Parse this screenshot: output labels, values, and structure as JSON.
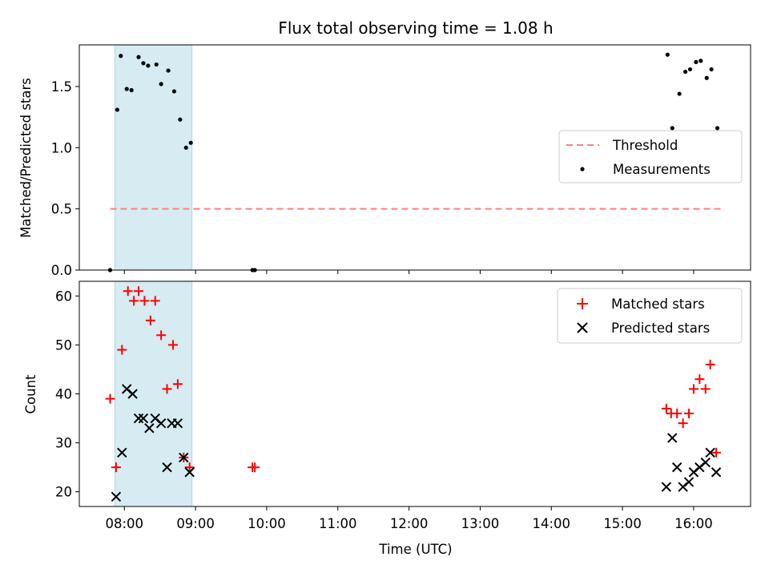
{
  "chart_data": {
    "title": "Flux total observing time = 1.08 h",
    "highlight_window": {
      "x_start": "07:52",
      "x_end": "08:57",
      "color": "#add8e6"
    },
    "x_axis": {
      "label": "Time (UTC)",
      "range": [
        "07:22",
        "16:48"
      ],
      "ticks": [
        "08:00",
        "09:00",
        "10:00",
        "11:00",
        "12:00",
        "13:00",
        "14:00",
        "15:00",
        "16:00"
      ]
    },
    "top": {
      "type": "scatter",
      "ylabel": "Matched/Predicted stars",
      "ylim": [
        0,
        1.84
      ],
      "yticks": [
        "0.0",
        "0.5",
        "1.0",
        "1.5"
      ],
      "threshold": {
        "name": "Threshold",
        "value": 0.5,
        "x_start": "07:48",
        "x_end": "16:26",
        "color": "#ff7f7f"
      },
      "series": [
        {
          "name": "Measurements",
          "color": "#000000",
          "points": [
            {
              "t": "07:48",
              "v": 0.0
            },
            {
              "t": "07:54",
              "v": 1.31
            },
            {
              "t": "07:57",
              "v": 1.75
            },
            {
              "t": "08:02",
              "v": 1.48
            },
            {
              "t": "08:06",
              "v": 1.47
            },
            {
              "t": "08:12",
              "v": 1.74
            },
            {
              "t": "08:16",
              "v": 1.69
            },
            {
              "t": "08:20",
              "v": 1.67
            },
            {
              "t": "08:27",
              "v": 1.68
            },
            {
              "t": "08:31",
              "v": 1.52
            },
            {
              "t": "08:37",
              "v": 1.63
            },
            {
              "t": "08:42",
              "v": 1.46
            },
            {
              "t": "08:47",
              "v": 1.23
            },
            {
              "t": "08:52",
              "v": 1.0
            },
            {
              "t": "08:56",
              "v": 1.04
            },
            {
              "t": "09:48",
              "v": 0.0
            },
            {
              "t": "09:50",
              "v": 0.0
            },
            {
              "t": "15:38",
              "v": 1.76
            },
            {
              "t": "15:42",
              "v": 1.16
            },
            {
              "t": "15:48",
              "v": 1.44
            },
            {
              "t": "15:53",
              "v": 1.62
            },
            {
              "t": "15:57",
              "v": 1.64
            },
            {
              "t": "16:02",
              "v": 1.7
            },
            {
              "t": "16:06",
              "v": 1.71
            },
            {
              "t": "16:11",
              "v": 1.57
            },
            {
              "t": "16:15",
              "v": 1.64
            },
            {
              "t": "16:20",
              "v": 1.16
            }
          ]
        }
      ],
      "legend": {
        "placement": "center-right",
        "entries": [
          "Threshold",
          "Measurements"
        ]
      }
    },
    "bottom": {
      "type": "scatter",
      "ylabel": "Count",
      "ylim": [
        17,
        63
      ],
      "yticks": [
        "20",
        "30",
        "40",
        "50",
        "60"
      ],
      "series": [
        {
          "name": "Matched stars",
          "marker": "+",
          "color": "#ff0000",
          "points": [
            {
              "t": "07:48",
              "v": 39
            },
            {
              "t": "07:53",
              "v": 25
            },
            {
              "t": "07:58",
              "v": 49
            },
            {
              "t": "08:03",
              "v": 61
            },
            {
              "t": "08:08",
              "v": 59
            },
            {
              "t": "08:12",
              "v": 61
            },
            {
              "t": "08:17",
              "v": 59
            },
            {
              "t": "08:22",
              "v": 55
            },
            {
              "t": "08:26",
              "v": 59
            },
            {
              "t": "08:31",
              "v": 52
            },
            {
              "t": "08:36",
              "v": 41
            },
            {
              "t": "08:41",
              "v": 50
            },
            {
              "t": "08:45",
              "v": 42
            },
            {
              "t": "08:50",
              "v": 27
            },
            {
              "t": "08:55",
              "v": 25
            },
            {
              "t": "09:48",
              "v": 25
            },
            {
              "t": "09:50",
              "v": 25
            },
            {
              "t": "15:37",
              "v": 37
            },
            {
              "t": "15:41",
              "v": 36
            },
            {
              "t": "15:46",
              "v": 36
            },
            {
              "t": "15:51",
              "v": 34
            },
            {
              "t": "15:56",
              "v": 36
            },
            {
              "t": "16:00",
              "v": 41
            },
            {
              "t": "16:05",
              "v": 43
            },
            {
              "t": "16:10",
              "v": 41
            },
            {
              "t": "16:14",
              "v": 46
            },
            {
              "t": "16:19",
              "v": 28
            }
          ]
        },
        {
          "name": "Predicted stars",
          "marker": "x",
          "color": "#000000",
          "points": [
            {
              "t": "07:53",
              "v": 19
            },
            {
              "t": "07:58",
              "v": 28
            },
            {
              "t": "08:02",
              "v": 41
            },
            {
              "t": "08:07",
              "v": 40
            },
            {
              "t": "08:12",
              "v": 35
            },
            {
              "t": "08:16",
              "v": 35
            },
            {
              "t": "08:21",
              "v": 33
            },
            {
              "t": "08:26",
              "v": 35
            },
            {
              "t": "08:31",
              "v": 34
            },
            {
              "t": "08:36",
              "v": 25
            },
            {
              "t": "08:40",
              "v": 34
            },
            {
              "t": "08:45",
              "v": 34
            },
            {
              "t": "08:50",
              "v": 27
            },
            {
              "t": "08:55",
              "v": 24
            },
            {
              "t": "15:37",
              "v": 21
            },
            {
              "t": "15:42",
              "v": 31
            },
            {
              "t": "15:46",
              "v": 25
            },
            {
              "t": "15:51",
              "v": 21
            },
            {
              "t": "15:56",
              "v": 22
            },
            {
              "t": "16:00",
              "v": 24
            },
            {
              "t": "16:05",
              "v": 25
            },
            {
              "t": "16:10",
              "v": 26
            },
            {
              "t": "16:14",
              "v": 28
            },
            {
              "t": "16:19",
              "v": 24
            }
          ]
        }
      ],
      "legend": {
        "placement": "top-right",
        "entries": [
          "Matched stars",
          "Predicted stars"
        ]
      }
    }
  }
}
